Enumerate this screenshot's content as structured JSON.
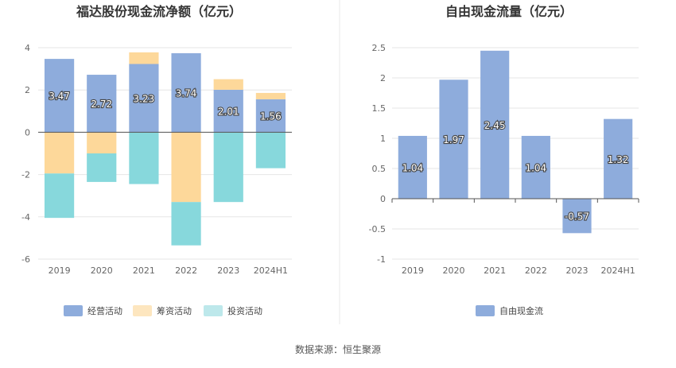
{
  "source_text": "数据来源：恒生聚源",
  "colors": {
    "operating": "#8eacdc",
    "financing": "#fdd89a",
    "investing": "#87d8dc",
    "legend_investing": "#bde8eb",
    "fcf": "#8eacdc"
  },
  "chart_data": [
    {
      "type": "bar",
      "stacked": true,
      "title": "福达股份现金流净额（亿元）",
      "categories": [
        "2019",
        "2020",
        "2021",
        "2022",
        "2023",
        "2024H1"
      ],
      "series": [
        {
          "name": "经营活动",
          "values": [
            3.47,
            2.72,
            3.23,
            3.74,
            2.01,
            1.56
          ],
          "labels": [
            "3.47",
            "2.72",
            "3.23",
            "3.74",
            "2.01",
            "1.56"
          ]
        },
        {
          "name": "筹资活动",
          "values": [
            -1.95,
            -1.0,
            0.55,
            -3.3,
            0.5,
            0.3
          ]
        },
        {
          "name": "投资活动",
          "values": [
            -2.1,
            -1.35,
            -2.45,
            -2.05,
            -3.3,
            -1.7
          ]
        }
      ],
      "ylim": [
        -6,
        4
      ],
      "yticks": [
        -6,
        -4,
        -2,
        0,
        2,
        4
      ],
      "legend_position": "bottom",
      "grid": true
    },
    {
      "type": "bar",
      "title": "自由现金流量（亿元）",
      "categories": [
        "2019",
        "2020",
        "2021",
        "2022",
        "2023",
        "2024H1"
      ],
      "series": [
        {
          "name": "自由现金流",
          "values": [
            1.04,
            1.97,
            2.45,
            1.04,
            -0.57,
            1.32
          ],
          "labels": [
            "1.04",
            "1.97",
            "2.45",
            "1.04",
            "-0.57",
            "1.32"
          ]
        }
      ],
      "ylim": [
        -1,
        2.5
      ],
      "yticks": [
        "-1",
        "-0.5",
        "0",
        "0.5",
        "1",
        "1.5",
        "2",
        "2.5"
      ],
      "legend_position": "bottom",
      "grid": true
    }
  ]
}
